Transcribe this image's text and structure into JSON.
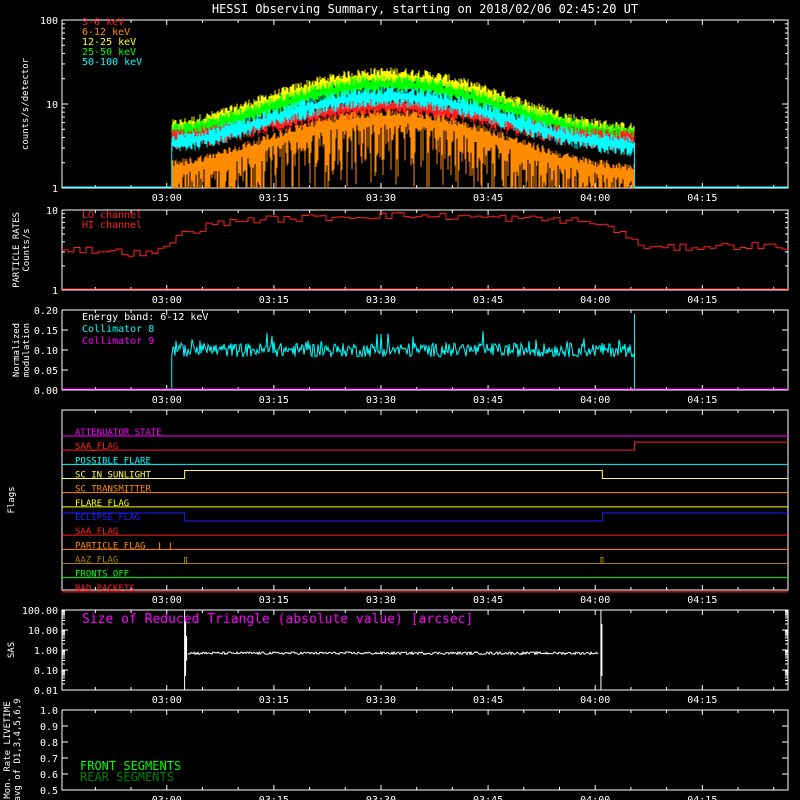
{
  "title": "HESSI Observing Summary, starting on 2018/02/06 02:45:20 UT",
  "time_ticks": [
    "03:00",
    "03:15",
    "03:30",
    "03:45",
    "04:00",
    "04:15"
  ],
  "time_tick_minutes": [
    180,
    195,
    210,
    225,
    240,
    255
  ],
  "time_range_minutes": [
    165.33,
    267.0
  ],
  "chart_data": [
    {
      "type": "line",
      "name": "count-rates",
      "ylabel": "counts/s/detector",
      "yscale": "log",
      "ylim": [
        1,
        100
      ],
      "yticks": [
        "1",
        "10",
        "100"
      ],
      "ytick_values": [
        1,
        10,
        100
      ],
      "data_start": 180.7,
      "data_end": 245.5,
      "peak_time": 211,
      "series": [
        {
          "name": "3-6 keV",
          "color": "#ff2020",
          "base": 3.8,
          "peak": 10
        },
        {
          "name": "6-12 keV",
          "color": "#ff8c00",
          "base": 1.5,
          "peak": 7
        },
        {
          "name": "12-25 keV",
          "color": "#ffff00",
          "base": 4.5,
          "peak": 22
        },
        {
          "name": "25-50 keV",
          "color": "#00ff00",
          "base": 4.2,
          "peak": 18
        },
        {
          "name": "50-100 keV",
          "color": "#00ffff",
          "base": 3.2,
          "peak": 13
        }
      ]
    },
    {
      "type": "line",
      "name": "particle-rates",
      "ylabel": "PARTICLE RATES",
      "ylabel2": "Counts/s",
      "yscale": "log",
      "ylim": [
        1,
        10
      ],
      "yticks": [
        "1",
        "10"
      ],
      "ytick_values": [
        1,
        10
      ],
      "series": [
        {
          "name": "LO channel",
          "color": "#ff2020"
        },
        {
          "name": "HI channel",
          "color": "#ff2020"
        }
      ],
      "lo_channel_x": [
        165.33,
        173,
        178,
        179,
        182,
        186,
        190,
        200,
        210,
        220,
        230,
        236,
        240,
        243,
        245,
        248,
        255,
        262,
        267
      ],
      "lo_channel_y": [
        3.3,
        3.0,
        2.8,
        3.2,
        5.0,
        6.5,
        7.5,
        8.0,
        8.6,
        8.3,
        7.8,
        7.5,
        6.8,
        5.5,
        4.0,
        3.3,
        3.5,
        3.6,
        3.4
      ]
    },
    {
      "type": "line",
      "name": "modulation",
      "ylabel": "Normalized",
      "ylabel2": "modulation",
      "ylim": [
        0,
        0.2
      ],
      "yticks": [
        "0.00",
        "0.05",
        "0.10",
        "0.15",
        "0.20"
      ],
      "ytick_values": [
        0,
        0.05,
        0.1,
        0.15,
        0.2
      ],
      "annotation": "Energy band: 6-12 keV",
      "series": [
        {
          "name": "Collimator 8",
          "color": "#00ffff",
          "level": 0.1,
          "start": 180.7,
          "end": 245.5
        },
        {
          "name": "Collimator 9",
          "color": "#ff00ff",
          "level": 0.0
        }
      ]
    },
    {
      "type": "line",
      "name": "flags",
      "ylabel": "Flags",
      "flags": [
        {
          "name": "ATTENUATOR STATE",
          "color": "#ff00ff"
        },
        {
          "name": "SAA_FLAG",
          "color": "#ff2020"
        },
        {
          "name": "POSSIBLE FLARE",
          "color": "#00ffff"
        },
        {
          "name": "SC IN SUNLIGHT",
          "color": "#ffff40"
        },
        {
          "name": "SC TRANSMITTER",
          "color": "#ff8c00"
        },
        {
          "name": "FLARE FLAG",
          "color": "#ffff00"
        },
        {
          "name": "ECLIPSE_FLAG",
          "color": "#2020ff"
        },
        {
          "name": "SAA FLAG",
          "color": "#ff2020"
        },
        {
          "name": "PARTICLE FLAG",
          "color": "#ff8c00"
        },
        {
          "name": "AAZ FLAG",
          "color": "#a08000"
        },
        {
          "name": "FRONTS OFF",
          "color": "#00ff00"
        },
        {
          "name": "BAD PACKETS",
          "color": "#ff2020"
        }
      ],
      "saa_up_after": 245.5,
      "sunlight_on": [
        182.5,
        241
      ],
      "eclipse_off": [
        182.5,
        241
      ],
      "particle_blips": [
        179,
        180.5
      ],
      "aaz_blips": [
        182.5,
        240.8
      ]
    },
    {
      "type": "line",
      "name": "sas",
      "ylabel": "SAS",
      "yscale": "log",
      "ylim": [
        0.01,
        100
      ],
      "yticks": [
        "0.01",
        "0.10",
        "1.00",
        "10.00",
        "100.00"
      ],
      "ytick_values": [
        0.01,
        0.1,
        1,
        10,
        100
      ],
      "annotation": "Size of Reduced Triangle (absolute value) [arcsec]",
      "series": [
        {
          "name": "triangle",
          "color": "#ffffff",
          "level": 0.7,
          "start": 182.5,
          "end": 240.8
        }
      ]
    },
    {
      "type": "line",
      "name": "livetime",
      "ylabel": "Mon. Rate LIVETIME",
      "ylabel2": "avg of D1,3,4,5,6,9",
      "ylim": [
        0.5,
        1.0
      ],
      "yticks": [
        "0.5",
        "0.6",
        "0.7",
        "0.8",
        "0.9",
        "1.0"
      ],
      "ytick_values": [
        0.5,
        0.6,
        0.7,
        0.8,
        0.9,
        1.0
      ],
      "series": [
        {
          "name": "FRONT SEGMENTS",
          "color": "#00ff00"
        },
        {
          "name": "REAR SEGMENTS",
          "color": "#008000"
        }
      ]
    }
  ]
}
